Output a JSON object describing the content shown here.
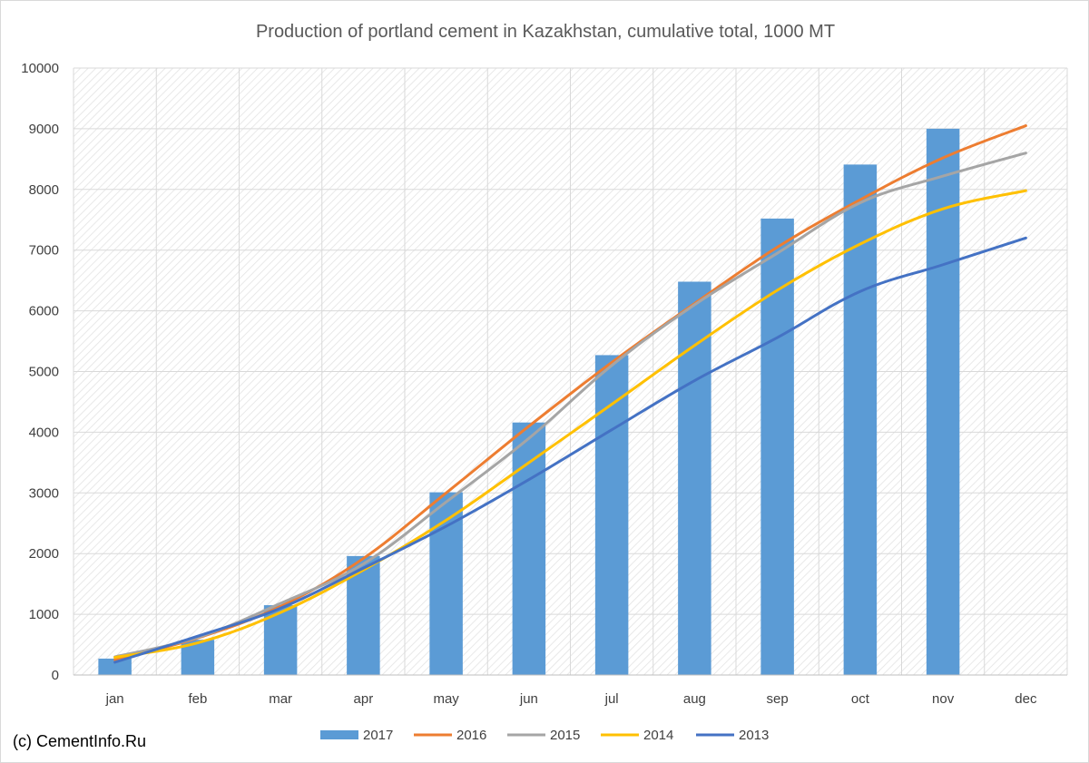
{
  "copyright": "(c) CementInfo.Ru",
  "chart_data": {
    "type": "bar",
    "title": "Production of portland cement in Kazakhstan, cumulative total, 1000 MT",
    "xlabel": "",
    "ylabel": "",
    "categories": [
      "jan",
      "feb",
      "mar",
      "apr",
      "may",
      "jun",
      "jul",
      "aug",
      "sep",
      "oct",
      "nov",
      "dec"
    ],
    "ylim": [
      0,
      10000
    ],
    "yticks": [
      0,
      1000,
      2000,
      3000,
      4000,
      5000,
      6000,
      7000,
      8000,
      9000,
      10000
    ],
    "grid": true,
    "legend_position": "bottom",
    "bar_series": {
      "name": "2017",
      "color": "#5B9BD5",
      "values": [
        270,
        580,
        1150,
        1960,
        3010,
        4160,
        5270,
        6480,
        7520,
        8410,
        9000,
        null
      ]
    },
    "line_series": [
      {
        "name": "2016",
        "color": "#ED7D31",
        "values": [
          250,
          610,
          1130,
          1920,
          3000,
          4100,
          5150,
          6120,
          7050,
          7830,
          8520,
          9050
        ]
      },
      {
        "name": "2015",
        "color": "#A5A5A5",
        "values": [
          300,
          620,
          1180,
          1830,
          2850,
          3900,
          5100,
          6100,
          6950,
          7780,
          8220,
          8600
        ]
      },
      {
        "name": "2014",
        "color": "#FFC000",
        "values": [
          290,
          530,
          1030,
          1730,
          2550,
          3500,
          4460,
          5430,
          6340,
          7100,
          7680,
          7980
        ]
      },
      {
        "name": "2013",
        "color": "#4472C4",
        "values": [
          210,
          640,
          1100,
          1760,
          2450,
          3220,
          4040,
          4850,
          5560,
          6320,
          6760,
          7200
        ]
      }
    ]
  }
}
